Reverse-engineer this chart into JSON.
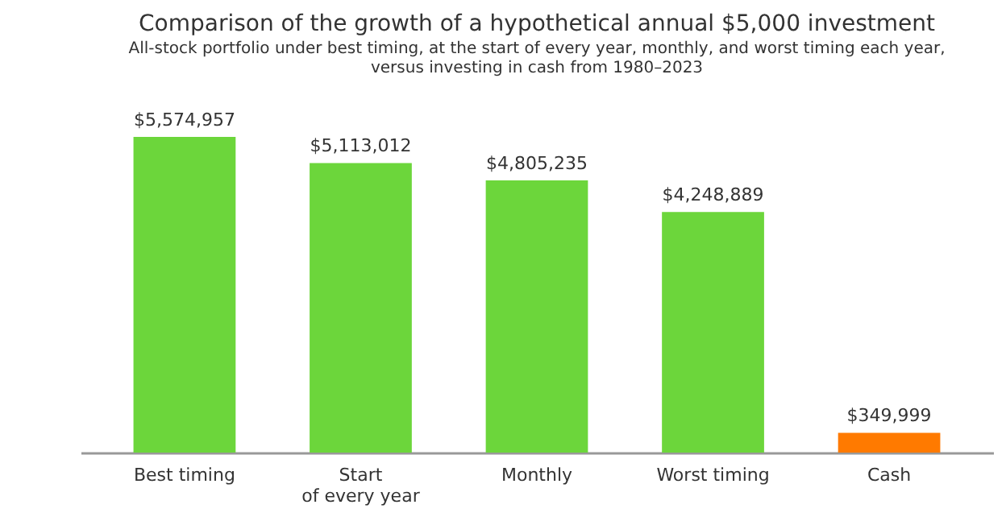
{
  "chart_data": {
    "type": "bar",
    "title": "Comparison of the growth of a hypothetical annual $5,000 investment",
    "subtitle": "All-stock portfolio under best timing, at the start of every year, monthly, and worst timing each year,\nversus investing in cash from 1980–2023",
    "categories": [
      "Best timing",
      "Start\nof every year",
      "Monthly",
      "Worst timing",
      "Cash"
    ],
    "values": [
      5574957,
      5113012,
      4805235,
      4248889,
      349999
    ],
    "colors": [
      "#6cd63b",
      "#6cd63b",
      "#6cd63b",
      "#6cd63b",
      "#ff7a00"
    ],
    "value_labels": [
      "$5,574,957",
      "$5,113,012",
      "$4,805,235",
      "$4,248,889",
      "$349,999"
    ],
    "grid": false,
    "tick_labels": "x"
  }
}
